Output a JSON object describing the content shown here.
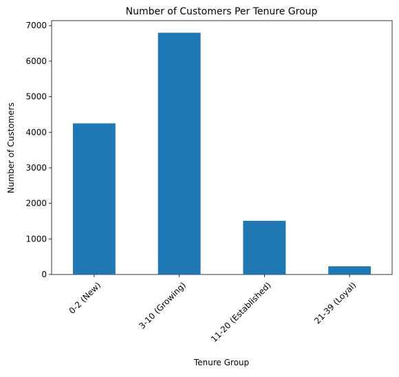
{
  "chart_data": {
    "type": "bar",
    "title": "Number of Customers Per Tenure Group",
    "xlabel": "Tenure Group",
    "ylabel": "Number of Customers",
    "categories": [
      "0-2 (New)",
      "3-10 (Growing)",
      "11-20 (Established)",
      "21-39 (Loyal)"
    ],
    "values": [
      4250,
      6800,
      1510,
      230
    ],
    "ylim": [
      0,
      7140
    ],
    "yticks": [
      0,
      1000,
      2000,
      3000,
      4000,
      5000,
      6000,
      7000
    ],
    "grid": false,
    "bar_color": "#1f77b4",
    "xtick_rotation": 45
  }
}
